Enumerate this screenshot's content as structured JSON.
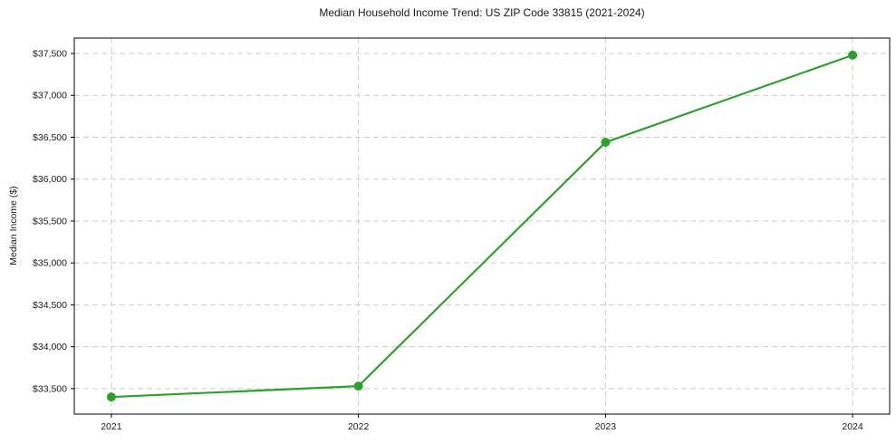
{
  "figure": {
    "background_color": "#ffffff"
  },
  "chart_data": {
    "type": "line",
    "title": "Median Household Income Trend: US ZIP Code 33815 (2021-2024)",
    "xlabel": "",
    "ylabel": "Median Income ($)",
    "x": [
      2021,
      2022,
      2023,
      2024
    ],
    "x_tick_labels": [
      "2021",
      "2022",
      "2023",
      "2024"
    ],
    "series": [
      {
        "name": "median-household-income",
        "values": [
          33400,
          33530,
          36440,
          37480
        ],
        "color": "#2ca02c",
        "marker": "circle",
        "line_width": 2.2,
        "marker_radius": 5
      }
    ],
    "y_ticks": [
      33500,
      34000,
      34500,
      35000,
      35500,
      36000,
      36500,
      37000,
      37500
    ],
    "y_tick_labels": [
      "$33,500",
      "$34,000",
      "$34,500",
      "$35,000",
      "$35,500",
      "$36,000",
      "$36,500",
      "$37,000",
      "$37,500"
    ],
    "ylim": [
      33196,
      37684
    ],
    "xlim": [
      2020.85,
      2024.15
    ],
    "grid": "both-dashed",
    "legend_position": "none"
  },
  "style": {
    "grid_color": "#cccccc",
    "axis_color": "#000000",
    "text_color": "#1a1a1a"
  }
}
